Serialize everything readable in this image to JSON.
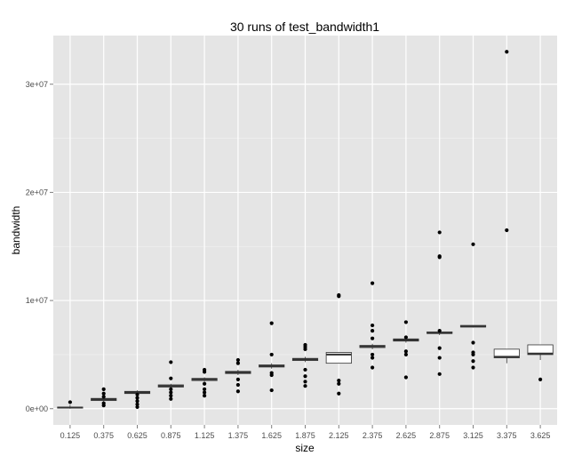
{
  "chart_data": {
    "type": "boxplot",
    "title": "30 runs of test_bandwidth1",
    "xlabel": "size",
    "ylabel": "bandwidth",
    "ylim": [
      -1500000,
      34500000
    ],
    "yticks": [
      {
        "value": 0,
        "label": "0e+00"
      },
      {
        "value": 10000000,
        "label": "1e+07"
      },
      {
        "value": 20000000,
        "label": "2e+07"
      },
      {
        "value": 30000000,
        "label": "3e+07"
      }
    ],
    "grid": true,
    "colors": {
      "panel": "#e5e5e5",
      "grid": "#ffffff",
      "box_fill": "#ffffff",
      "box_stroke": "#333333",
      "point": "#000000"
    },
    "categories": [
      "0.125",
      "0.375",
      "0.625",
      "0.875",
      "1.125",
      "1.375",
      "1.625",
      "1.875",
      "2.125",
      "2.375",
      "2.625",
      "2.875",
      "3.125",
      "3.375",
      "3.625"
    ],
    "boxes": [
      {
        "q1": 50000,
        "median": 100000,
        "q3": 150000,
        "whisker_low": 0,
        "whisker_high": 350000,
        "outliers": [
          600000
        ]
      },
      {
        "q1": 750000,
        "median": 850000,
        "q3": 950000,
        "whisker_low": 600000,
        "whisker_high": 1200000,
        "outliers": [
          1800000,
          1400000,
          1100000,
          500000,
          300000
        ]
      },
      {
        "q1": 1400000,
        "median": 1500000,
        "q3": 1600000,
        "whisker_low": 1300000,
        "whisker_high": 1700000,
        "outliers": [
          1300000,
          1000000,
          700000,
          400000,
          150000
        ]
      },
      {
        "q1": 2000000,
        "median": 2100000,
        "q3": 2200000,
        "whisker_low": 1900000,
        "whisker_high": 2300000,
        "outliers": [
          4300000,
          2800000,
          1800000,
          1500000,
          1200000,
          900000
        ]
      },
      {
        "q1": 2600000,
        "median": 2700000,
        "q3": 2800000,
        "whisker_low": 2500000,
        "whisker_high": 2900000,
        "outliers": [
          3600000,
          3400000,
          2300000,
          1800000,
          1500000,
          1200000
        ]
      },
      {
        "q1": 3250000,
        "median": 3350000,
        "q3": 3450000,
        "whisker_low": 3100000,
        "whisker_high": 3600000,
        "outliers": [
          4500000,
          4200000,
          2700000,
          2200000,
          1600000
        ]
      },
      {
        "q1": 3850000,
        "median": 3950000,
        "q3": 4050000,
        "whisker_low": 3700000,
        "whisker_high": 4200000,
        "outliers": [
          7900000,
          5000000,
          3300000,
          3100000,
          1700000
        ]
      },
      {
        "q1": 4450000,
        "median": 4550000,
        "q3": 4650000,
        "whisker_low": 4300000,
        "whisker_high": 4800000,
        "outliers": [
          5900000,
          5700000,
          5500000,
          3600000,
          3000000,
          2500000,
          2100000
        ]
      },
      {
        "q1": 4200000,
        "median": 5000000,
        "q3": 5200000,
        "whisker_low": 4200000,
        "whisker_high": 5200000,
        "outliers": [
          10500000,
          10400000,
          2600000,
          2300000,
          1400000
        ]
      },
      {
        "q1": 5650000,
        "median": 5750000,
        "q3": 5850000,
        "whisker_low": 5500000,
        "whisker_high": 6000000,
        "outliers": [
          11600000,
          7700000,
          7200000,
          6500000,
          5000000,
          4700000,
          3800000
        ]
      },
      {
        "q1": 6250000,
        "median": 6350000,
        "q3": 6450000,
        "whisker_low": 6100000,
        "whisker_high": 6600000,
        "outliers": [
          8000000,
          6600000,
          5300000,
          5000000,
          2900000
        ]
      },
      {
        "q1": 6950000,
        "median": 7000000,
        "q3": 7100000,
        "whisker_low": 6800000,
        "whisker_high": 7200000,
        "outliers": [
          16300000,
          14100000,
          14000000,
          7200000,
          5600000,
          4700000,
          3200000
        ]
      },
      {
        "q1": 7550000,
        "median": 7600000,
        "q3": 7700000,
        "whisker_low": 7500000,
        "whisker_high": 7700000,
        "outliers": [
          15200000,
          6100000,
          5200000,
          5000000,
          4400000,
          3800000
        ]
      },
      {
        "q1": 4700000,
        "median": 4800000,
        "q3": 5500000,
        "whisker_low": 4200000,
        "whisker_high": 5500000,
        "outliers": [
          33000000,
          16500000
        ]
      },
      {
        "q1": 5000000,
        "median": 5100000,
        "q3": 5900000,
        "whisker_low": 4500000,
        "whisker_high": 5900000,
        "outliers": [
          2700000
        ]
      }
    ]
  }
}
